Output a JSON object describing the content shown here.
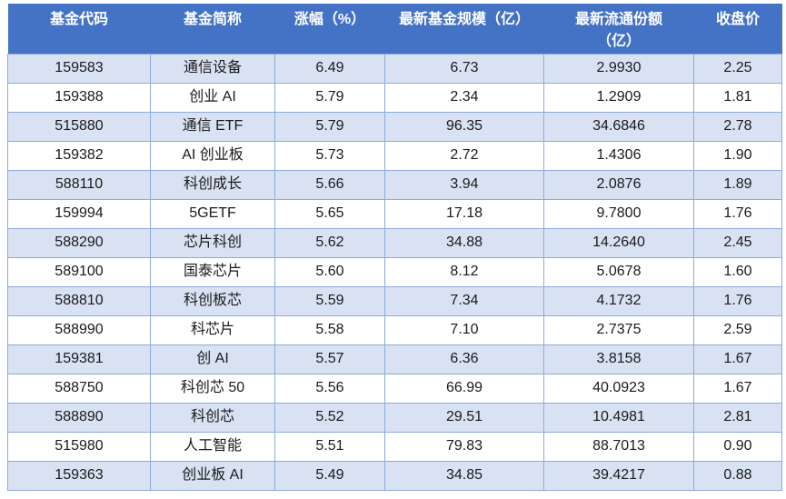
{
  "colors": {
    "header_bg": "#4472C4",
    "header_text": "#FFFFFF",
    "band_row_bg": "#D9E2F3",
    "plain_row_bg": "#FFFFFF",
    "grid_border": "#8EAADB",
    "body_text": "#1A1A1A"
  },
  "table": {
    "columns": [
      {
        "key": "fund_code",
        "label": "基金代码"
      },
      {
        "key": "fund_name",
        "label": "基金简称"
      },
      {
        "key": "change_pct",
        "label": "涨幅（%）"
      },
      {
        "key": "fund_scale",
        "label": "最新基金规模（亿）"
      },
      {
        "key": "float_share",
        "label": "最新流通份额\n（亿）"
      },
      {
        "key": "close_price",
        "label": "收盘价"
      }
    ],
    "rows": [
      [
        "159583",
        "通信设备",
        "6.49",
        "6.73",
        "2.9930",
        "2.25"
      ],
      [
        "159388",
        "创业 AI",
        "5.79",
        "2.34",
        "1.2909",
        "1.81"
      ],
      [
        "515880",
        "通信 ETF",
        "5.79",
        "96.35",
        "34.6846",
        "2.78"
      ],
      [
        "159382",
        "AI 创业板",
        "5.73",
        "2.72",
        "1.4306",
        "1.90"
      ],
      [
        "588110",
        "科创成长",
        "5.66",
        "3.94",
        "2.0876",
        "1.89"
      ],
      [
        "159994",
        "5GETF",
        "5.65",
        "17.18",
        "9.7800",
        "1.76"
      ],
      [
        "588290",
        "芯片科创",
        "5.62",
        "34.88",
        "14.2640",
        "2.45"
      ],
      [
        "589100",
        "国泰芯片",
        "5.60",
        "8.12",
        "5.0678",
        "1.60"
      ],
      [
        "588810",
        "科创板芯",
        "5.59",
        "7.34",
        "4.1732",
        "1.76"
      ],
      [
        "588990",
        "科芯片",
        "5.58",
        "7.10",
        "2.7375",
        "2.59"
      ],
      [
        "159381",
        "创 AI",
        "5.57",
        "6.36",
        "3.8158",
        "1.67"
      ],
      [
        "588750",
        "科创芯 50",
        "5.56",
        "66.99",
        "40.0923",
        "1.67"
      ],
      [
        "588890",
        "科创芯",
        "5.52",
        "29.51",
        "10.4981",
        "2.81"
      ],
      [
        "515980",
        "人工智能",
        "5.51",
        "79.83",
        "88.7013",
        "0.90"
      ],
      [
        "159363",
        "创业板 AI",
        "5.49",
        "34.85",
        "39.4217",
        "0.88"
      ]
    ]
  }
}
